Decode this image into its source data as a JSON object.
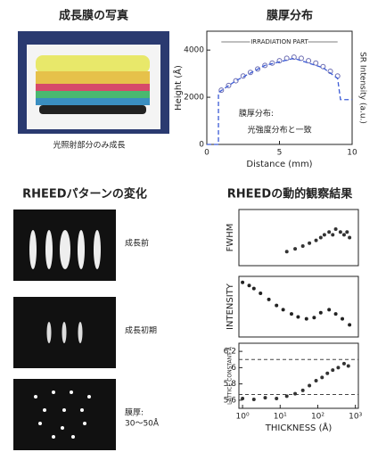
{
  "photo_panel": {
    "title": "成長膜の写真",
    "caption": "光照射部分のみ成長"
  },
  "rheed_panel": {
    "title": "RHEEDパターンの変化",
    "stages": [
      [
        "成長前"
      ],
      [
        "成長初期"
      ],
      [
        "膜厚:",
        "30〜50Å"
      ]
    ]
  },
  "chart_data": [
    {
      "type": "scatter",
      "title": "膜厚分布",
      "xlabel": "Distance (mm)",
      "ylabel": "Height (Å)",
      "y2label": "SR Intensity (a.u.)",
      "annotations": [
        "IRRADIATION PART",
        "膜厚分布:",
        "光強度分布と一致"
      ],
      "xlim": [
        0,
        10
      ],
      "ylim": [
        0,
        4800
      ],
      "xticks": [
        0,
        5,
        10
      ],
      "yticks": [
        0,
        2000,
        4000
      ],
      "series": [
        {
          "marker": "circle",
          "color": "#6a6ab0",
          "x": [
            1,
            1.5,
            2,
            2.5,
            3,
            3.5,
            4,
            4.5,
            5,
            5.5,
            6,
            6.5,
            7,
            7.5,
            8,
            8.5,
            9
          ],
          "values": [
            2300,
            2500,
            2700,
            2900,
            3050,
            3200,
            3350,
            3450,
            3550,
            3650,
            3700,
            3650,
            3550,
            3450,
            3300,
            3100,
            2900
          ]
        },
        {
          "marker": "dashed-line",
          "color": "#3b5bd6",
          "x": [
            0,
            0.8,
            0.8,
            2,
            4,
            6,
            8,
            9,
            9.2,
            10
          ],
          "values": [
            0,
            0,
            2200,
            2700,
            3350,
            3650,
            3250,
            2800,
            1900,
            1900
          ]
        }
      ]
    },
    {
      "type": "scatter",
      "title": "RHEEDの動的観察結果",
      "ylabel": "FWHM",
      "xscale": "log",
      "xlim": [
        0.8,
        1200
      ],
      "ylim": [
        0,
        1
      ],
      "series": [
        {
          "marker": "dot",
          "color": "#333333",
          "x": [
            15,
            25,
            40,
            60,
            90,
            120,
            150,
            200,
            250,
            300,
            400,
            500,
            600,
            700
          ],
          "values": [
            0.25,
            0.3,
            0.35,
            0.4,
            0.45,
            0.5,
            0.55,
            0.6,
            0.55,
            0.65,
            0.6,
            0.55,
            0.6,
            0.5
          ]
        }
      ]
    },
    {
      "type": "scatter",
      "ylabel": "INTENSITY",
      "xscale": "log",
      "xlim": [
        0.8,
        1200
      ],
      "ylim": [
        0,
        1
      ],
      "series": [
        {
          "marker": "dot",
          "color": "#222222",
          "x": [
            1,
            1.5,
            2,
            3,
            5,
            8,
            12,
            20,
            30,
            50,
            80,
            120,
            200,
            300,
            450,
            700
          ],
          "values": [
            0.9,
            0.85,
            0.8,
            0.72,
            0.62,
            0.52,
            0.45,
            0.38,
            0.33,
            0.3,
            0.32,
            0.4,
            0.45,
            0.38,
            0.3,
            0.2
          ]
        }
      ]
    },
    {
      "type": "scatter",
      "ylabel": "LATTICE CONSTANT Å",
      "xlabel": "THICKNESS (Å)",
      "xscale": "log",
      "xlim": [
        0.8,
        1200
      ],
      "ylim": [
        5.5,
        6.3
      ],
      "xticks": [
        {
          "value": 1,
          "label": "10⁰"
        },
        {
          "value": 10,
          "label": "10¹"
        },
        {
          "value": 100,
          "label": "10²"
        },
        {
          "value": 1000,
          "label": "10³"
        }
      ],
      "yticks": [
        5.6,
        5.8,
        6,
        6.2
      ],
      "reference_lines": [
        6.1,
        5.67
      ],
      "series": [
        {
          "marker": "dot",
          "color": "#333333",
          "x": [
            1,
            2,
            4,
            8,
            15,
            25,
            40,
            60,
            90,
            130,
            180,
            250,
            350,
            500,
            650
          ],
          "values": [
            5.62,
            5.61,
            5.63,
            5.62,
            5.65,
            5.68,
            5.72,
            5.78,
            5.84,
            5.88,
            5.93,
            5.97,
            6.0,
            6.05,
            6.02
          ]
        }
      ]
    }
  ]
}
